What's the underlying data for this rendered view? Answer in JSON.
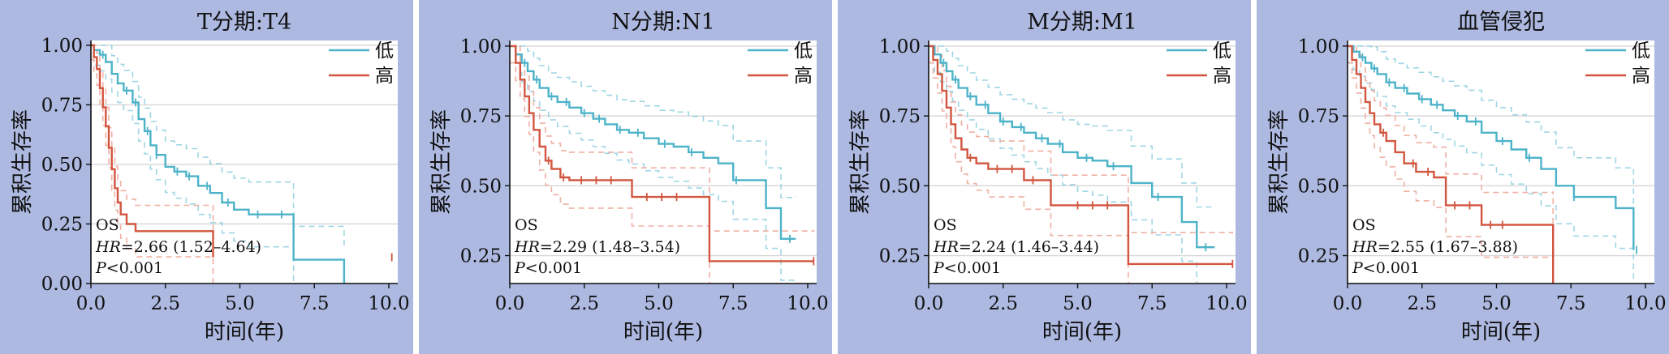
{
  "colors": {
    "panel_bg": "#adb9e1",
    "low": "#4db3c9",
    "high": "#d2553f",
    "ci_low": "#9fd6e3",
    "ci_high": "#efb0a4",
    "grid": "#d7d7d7"
  },
  "chart_data": [
    {
      "type": "line",
      "title": "T分期:T4",
      "xlabel": "时间(年)",
      "ylabel": "累积生存率",
      "xlim": [
        0,
        10.3
      ],
      "ylim": [
        0,
        1.02
      ],
      "xticks": [
        "0.0",
        "2.5",
        "5.0",
        "7.5",
        "10.0"
      ],
      "yticks": [
        "0.00",
        "0.25",
        "0.50",
        "0.75",
        "1.00"
      ],
      "grid": true,
      "legend_position": "top-right",
      "annotation": {
        "line1": "OS",
        "hr_label": "HR",
        "hr_text": "=2.66 (1.52–4.64)",
        "p_label": "P",
        "p_text": "<0.001"
      },
      "series": [
        {
          "name": "低",
          "color": "low",
          "x": [
            0,
            0.1,
            0.3,
            0.5,
            0.7,
            0.9,
            1.1,
            1.4,
            1.6,
            1.8,
            2.0,
            2.2,
            2.5,
            2.8,
            3.2,
            3.6,
            4.0,
            4.4,
            4.8,
            5.3,
            6.8,
            8.5
          ],
          "y": [
            1.0,
            0.98,
            0.96,
            0.93,
            0.88,
            0.84,
            0.81,
            0.76,
            0.69,
            0.64,
            0.58,
            0.54,
            0.49,
            0.47,
            0.45,
            0.41,
            0.38,
            0.34,
            0.31,
            0.29,
            0.1,
            0.0
          ],
          "censor_x": [
            0.4,
            1.2,
            1.5,
            1.9,
            2.2,
            2.9,
            3.3,
            3.9,
            4.6,
            5.6,
            6.4
          ]
        },
        {
          "name": "高",
          "color": "high",
          "x": [
            0,
            0.1,
            0.2,
            0.3,
            0.4,
            0.5,
            0.6,
            0.7,
            0.8,
            0.9,
            1.0,
            1.2,
            1.5,
            4.1
          ],
          "y": [
            1.0,
            0.95,
            0.9,
            0.82,
            0.74,
            0.66,
            0.57,
            0.48,
            0.4,
            0.34,
            0.29,
            0.25,
            0.22,
            0.11
          ],
          "censor_x": [
            10.1
          ]
        }
      ]
    },
    {
      "type": "line",
      "title": "N分期:N1",
      "xlabel": "时间(年)",
      "ylabel": "累积生存率",
      "xlim": [
        0,
        10.3
      ],
      "ylim": [
        0.15,
        1.02
      ],
      "xticks": [
        "0.0",
        "2.5",
        "5.0",
        "7.5",
        "10.0"
      ],
      "yticks": [
        "0.25",
        "0.50",
        "0.75",
        "1.00"
      ],
      "grid": true,
      "legend_position": "top-right",
      "annotation": {
        "line1": "OS",
        "hr_label": "HR",
        "hr_text": "=2.29 (1.48–3.54)",
        "p_label": "P",
        "p_text": "<0.001"
      },
      "series": [
        {
          "name": "低",
          "color": "low",
          "x": [
            0,
            0.2,
            0.4,
            0.6,
            0.8,
            1.0,
            1.3,
            1.6,
            2.0,
            2.4,
            2.8,
            3.2,
            3.6,
            4.0,
            4.5,
            5.0,
            5.5,
            6.0,
            6.5,
            7.0,
            7.5,
            8.6,
            9.1,
            9.6
          ],
          "y": [
            1.0,
            0.97,
            0.94,
            0.91,
            0.88,
            0.85,
            0.82,
            0.8,
            0.78,
            0.76,
            0.74,
            0.72,
            0.7,
            0.69,
            0.67,
            0.65,
            0.64,
            0.62,
            0.6,
            0.58,
            0.52,
            0.42,
            0.31,
            0.31
          ],
          "censor_x": [
            0.5,
            0.9,
            1.4,
            1.9,
            2.5,
            3.0,
            3.7,
            4.3,
            5.2,
            6.1,
            7.6,
            9.4
          ]
        },
        {
          "name": "高",
          "color": "high",
          "x": [
            0,
            0.2,
            0.35,
            0.5,
            0.65,
            0.8,
            1.0,
            1.2,
            1.4,
            1.7,
            2.0,
            4.1,
            6.7,
            10.2
          ],
          "y": [
            1.0,
            0.94,
            0.88,
            0.82,
            0.76,
            0.7,
            0.64,
            0.59,
            0.56,
            0.53,
            0.52,
            0.46,
            0.23,
            0.23
          ],
          "censor_x": [
            1.3,
            1.8,
            2.4,
            2.9,
            3.4,
            4.6,
            5.1,
            5.6,
            10.2
          ]
        }
      ]
    },
    {
      "type": "line",
      "title": "M分期:M1",
      "xlabel": "时间(年)",
      "ylabel": "累积生存率",
      "xlim": [
        0,
        10.3
      ],
      "ylim": [
        0.15,
        1.02
      ],
      "xticks": [
        "0.0",
        "2.5",
        "5.0",
        "7.5",
        "10.0"
      ],
      "yticks": [
        "0.25",
        "0.50",
        "0.75",
        "1.00"
      ],
      "grid": true,
      "legend_position": "top-right",
      "annotation": {
        "line1": "OS",
        "hr_label": "HR",
        "hr_text": "=2.24 (1.46–3.44)",
        "p_label": "P",
        "p_text": "<0.001"
      },
      "series": [
        {
          "name": "低",
          "color": "low",
          "x": [
            0,
            0.2,
            0.4,
            0.6,
            0.8,
            1.0,
            1.3,
            1.6,
            2.0,
            2.4,
            2.8,
            3.2,
            3.6,
            4.0,
            4.5,
            5.0,
            5.5,
            6.0,
            6.8,
            7.5,
            8.5,
            9.0,
            9.6
          ],
          "y": [
            1.0,
            0.97,
            0.94,
            0.91,
            0.88,
            0.85,
            0.82,
            0.79,
            0.76,
            0.73,
            0.71,
            0.69,
            0.67,
            0.65,
            0.62,
            0.6,
            0.59,
            0.57,
            0.51,
            0.46,
            0.37,
            0.28,
            0.28
          ],
          "censor_x": [
            0.5,
            0.9,
            1.4,
            1.9,
            2.5,
            3.1,
            3.8,
            4.4,
            5.3,
            6.2,
            7.7,
            9.3
          ]
        },
        {
          "name": "高",
          "color": "high",
          "x": [
            0,
            0.15,
            0.3,
            0.45,
            0.6,
            0.75,
            0.9,
            1.1,
            1.3,
            1.6,
            2.0,
            3.2,
            4.1,
            6.7,
            10.2
          ],
          "y": [
            1.0,
            0.95,
            0.9,
            0.84,
            0.78,
            0.72,
            0.67,
            0.63,
            0.6,
            0.58,
            0.56,
            0.52,
            0.43,
            0.22,
            0.22
          ],
          "censor_x": [
            1.4,
            2.3,
            2.8,
            3.5,
            5.0,
            5.5,
            6.0,
            10.2
          ]
        }
      ]
    },
    {
      "type": "line",
      "title": "血管侵犯",
      "xlabel": "时间(年)",
      "ylabel": "累积生存率",
      "xlim": [
        0,
        10.3
      ],
      "ylim": [
        0.15,
        1.02
      ],
      "xticks": [
        "0.0",
        "2.5",
        "5.0",
        "7.5",
        "10.0"
      ],
      "yticks": [
        "0.25",
        "0.50",
        "0.75",
        "1.00"
      ],
      "grid": true,
      "legend_position": "top-right",
      "annotation": {
        "line1": "OS",
        "hr_label": "HR",
        "hr_text": "=2.55 (1.67–3.88)",
        "p_label": "P",
        "p_text": "<0.001"
      },
      "series": [
        {
          "name": "低",
          "color": "low",
          "x": [
            0,
            0.2,
            0.4,
            0.6,
            0.8,
            1.0,
            1.3,
            1.6,
            2.0,
            2.4,
            2.8,
            3.2,
            3.6,
            4.0,
            4.5,
            5.0,
            5.5,
            6.0,
            6.5,
            7.0,
            7.6,
            9.0,
            9.6
          ],
          "y": [
            1.0,
            0.98,
            0.96,
            0.94,
            0.92,
            0.9,
            0.87,
            0.85,
            0.83,
            0.81,
            0.79,
            0.77,
            0.75,
            0.73,
            0.69,
            0.66,
            0.63,
            0.6,
            0.56,
            0.5,
            0.46,
            0.42,
            0.27
          ],
          "censor_x": [
            0.5,
            0.9,
            1.4,
            1.9,
            2.5,
            3.0,
            3.7,
            4.3,
            5.2,
            6.1,
            7.6,
            9.7
          ]
        },
        {
          "name": "高",
          "color": "high",
          "x": [
            0,
            0.15,
            0.3,
            0.45,
            0.6,
            0.75,
            0.9,
            1.1,
            1.3,
            1.6,
            1.9,
            2.3,
            2.9,
            3.3,
            4.5,
            6.9,
            6.9
          ],
          "y": [
            1.0,
            0.95,
            0.9,
            0.85,
            0.8,
            0.76,
            0.72,
            0.69,
            0.66,
            0.62,
            0.58,
            0.55,
            0.53,
            0.43,
            0.36,
            0.36,
            0.15
          ],
          "censor_x": [
            1.2,
            2.2,
            2.7,
            3.6,
            4.1,
            4.8,
            5.2
          ]
        }
      ]
    }
  ]
}
